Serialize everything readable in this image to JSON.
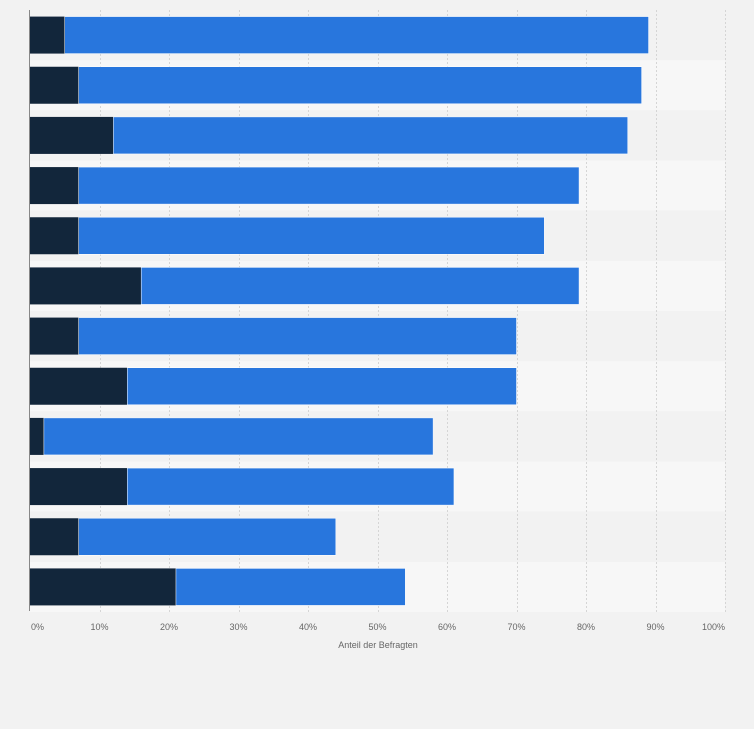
{
  "chart_data": {
    "type": "bar",
    "orientation": "horizontal",
    "stacked": true,
    "categories": [
      "",
      "",
      "",
      "",
      "",
      "",
      "",
      "",
      "",
      "",
      "",
      ""
    ],
    "series": [
      {
        "color": "#12263b",
        "values": [
          5,
          7,
          12,
          7,
          7,
          16,
          7,
          14,
          2,
          14,
          7,
          21
        ]
      },
      {
        "color": "#2876dd",
        "values": [
          84,
          81,
          74,
          72,
          67,
          63,
          63,
          56,
          56,
          47,
          37,
          33
        ]
      }
    ],
    "xlim": [
      0,
      100
    ],
    "xticks": [
      "0%",
      "10%",
      "20%",
      "30%",
      "40%",
      "50%",
      "60%",
      "70%",
      "80%",
      "90%",
      "100%"
    ],
    "xlabel": "Anteil der Befragten",
    "ylabel": "",
    "title": "",
    "grid": true,
    "legend": "none",
    "row_band_colors": [
      "#f2f2f2",
      "#f7f7f7"
    ]
  }
}
